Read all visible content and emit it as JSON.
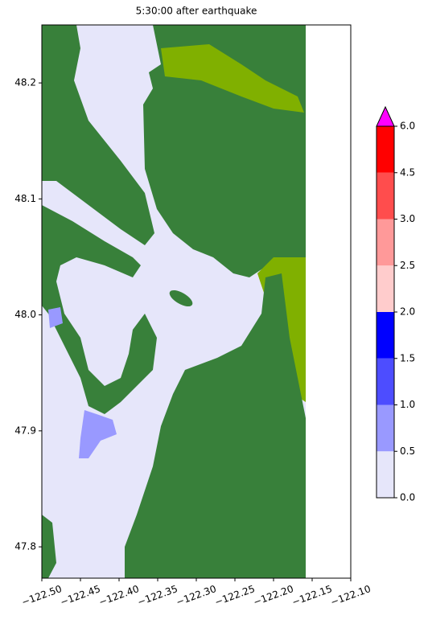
{
  "chart_data": {
    "type": "map",
    "title": "5:30:00 after earthquake",
    "xlim": [
      -122.5,
      -122.1
    ],
    "ylim": [
      47.773,
      48.25
    ],
    "xticks": [
      {
        "value": -122.5,
        "label": "−122.50"
      },
      {
        "value": -122.45,
        "label": "−122.45"
      },
      {
        "value": -122.4,
        "label": "−122.40"
      },
      {
        "value": -122.35,
        "label": "−122.35"
      },
      {
        "value": -122.3,
        "label": "−122.30"
      },
      {
        "value": -122.25,
        "label": "−122.25"
      },
      {
        "value": -122.2,
        "label": "−122.20"
      },
      {
        "value": -122.15,
        "label": "−122.15"
      },
      {
        "value": -122.1,
        "label": "−122.10"
      }
    ],
    "yticks": [
      47.8,
      47.9,
      {
        "value": 48,
        "label": "48.0"
      },
      48.1,
      48.2
    ],
    "colorbar": {
      "ticks": [
        {
          "value": 0,
          "label": "0.0"
        },
        {
          "value": 0.5,
          "label": "0.5"
        },
        {
          "value": 1,
          "label": "1.0"
        },
        {
          "value": 1.5,
          "label": "1.5"
        },
        {
          "value": 2,
          "label": "2.0"
        },
        {
          "value": 2.5,
          "label": "2.5"
        },
        {
          "value": 3,
          "label": "3.0"
        },
        {
          "value": 4.5,
          "label": "4.5"
        },
        {
          "value": 6,
          "label": "6.0"
        }
      ],
      "colors": [
        "#e6e6fa",
        "#9999ff",
        "#4d4dff",
        "#0000ff",
        "#ffcccc",
        "#ff9999",
        "#ff4d4d",
        "#ff0000"
      ],
      "extend_color": "#ff00ff"
    }
  }
}
